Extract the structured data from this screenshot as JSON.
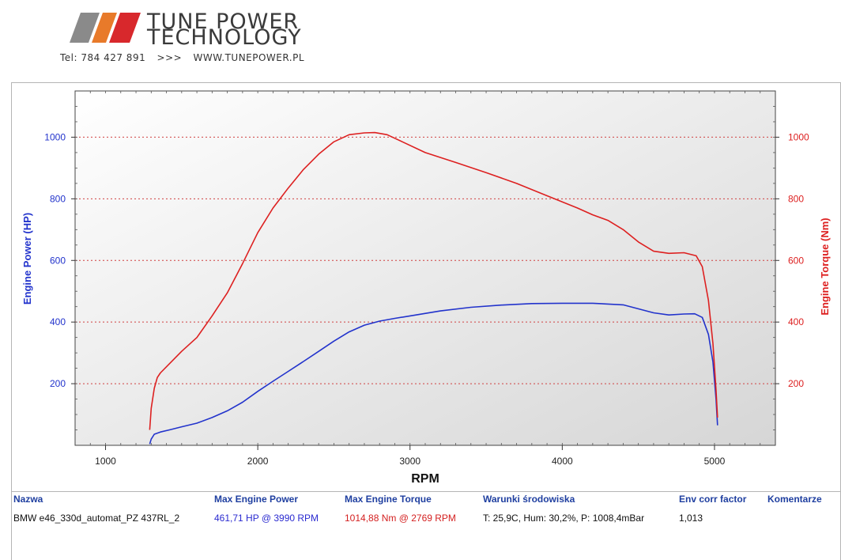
{
  "header": {
    "brand_line1": "TUNE POWER",
    "brand_line2": "TECHNOLOGY",
    "phone": "Tel: 784 427 891",
    "separator": ">>>",
    "website": "WWW.TUNEPOWER.PL",
    "logo_colors": [
      "#8a8a8a",
      "#e87a2a",
      "#d8282c"
    ]
  },
  "chart_data": {
    "type": "line",
    "xlabel": "RPM",
    "ylabel_left": "Engine Power (HP)",
    "ylabel_right": "Engine Torque (Nm)",
    "xlim": [
      800,
      5400
    ],
    "ylim_left": [
      0,
      1150
    ],
    "ylim_right": [
      0,
      1150
    ],
    "x_ticks": [
      1000,
      2000,
      3000,
      4000,
      5000
    ],
    "y_ticks_left": [
      200,
      400,
      600,
      800,
      1000
    ],
    "y_ticks_right": [
      200,
      400,
      600,
      800,
      1000
    ],
    "grid": "horizontal dotted red",
    "series": [
      {
        "axis": "left",
        "color": "#2233cc",
        "x": [
          1290,
          1300,
          1320,
          1360,
          1420,
          1500,
          1600,
          1700,
          1800,
          1900,
          2000,
          2100,
          2200,
          2300,
          2400,
          2500,
          2600,
          2700,
          2800,
          2900,
          3000,
          3200,
          3400,
          3600,
          3800,
          4000,
          4200,
          4400,
          4600,
          4700,
          4800,
          4870,
          4920,
          4960,
          4990,
          5010,
          5020
        ],
        "values": [
          4,
          20,
          36,
          43,
          50,
          60,
          72,
          90,
          112,
          140,
          175,
          208,
          240,
          272,
          305,
          338,
          368,
          390,
          403,
          412,
          420,
          436,
          448,
          455,
          460,
          461,
          461,
          456,
          430,
          423,
          426,
          427,
          415,
          360,
          270,
          150,
          65
        ]
      },
      {
        "axis": "right",
        "color": "#dd2020",
        "x": [
          1290,
          1300,
          1320,
          1340,
          1360,
          1400,
          1500,
          1600,
          1700,
          1800,
          1900,
          2000,
          2100,
          2200,
          2300,
          2400,
          2500,
          2600,
          2700,
          2769,
          2850,
          2950,
          3100,
          3300,
          3500,
          3700,
          3900,
          4100,
          4200,
          4300,
          4400,
          4500,
          4600,
          4700,
          4800,
          4880,
          4920,
          4960,
          4990,
          5010,
          5020
        ],
        "values": [
          50,
          120,
          185,
          220,
          235,
          255,
          305,
          350,
          420,
          495,
          590,
          690,
          770,
          835,
          895,
          945,
          985,
          1008,
          1014,
          1015,
          1008,
          985,
          950,
          918,
          885,
          850,
          810,
          770,
          748,
          730,
          700,
          660,
          630,
          623,
          625,
          615,
          580,
          470,
          330,
          180,
          90
        ]
      }
    ]
  },
  "table": {
    "headers": {
      "name": "Nazwa",
      "max_power": "Max Engine Power",
      "max_torque": "Max Engine Torque",
      "conditions": "Warunki środowiska",
      "env": "Env corr factor",
      "comments": "Komentarze"
    },
    "row": {
      "name": "BMW e46_330d_automat_PZ 437RL_2",
      "max_power": "461,71 HP @ 3990 RPM",
      "max_torque": "1014,88 Nm @ 2769 RPM",
      "conditions": "T: 25,9C, Hum: 30,2%, P: 1008,4mBar",
      "env": "1,013",
      "comments": ""
    }
  }
}
